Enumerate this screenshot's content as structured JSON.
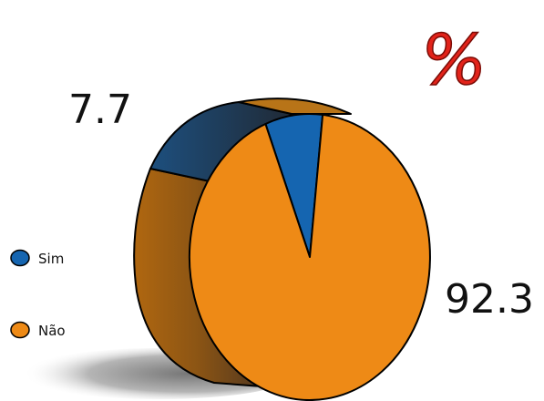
{
  "chart_data": {
    "type": "pie",
    "unit_mark": "%",
    "categories": [
      "Sim",
      "Não"
    ],
    "values": [
      7.7,
      92.3
    ],
    "colors": [
      "#1565b0",
      "#ee8a16"
    ],
    "data_labels": [
      "7.7",
      "92.3"
    ],
    "legend": [
      {
        "label": "Sim",
        "color": "#1565b0"
      },
      {
        "label": "Não",
        "color": "#ee8a16"
      }
    ],
    "legend_position": "left"
  }
}
